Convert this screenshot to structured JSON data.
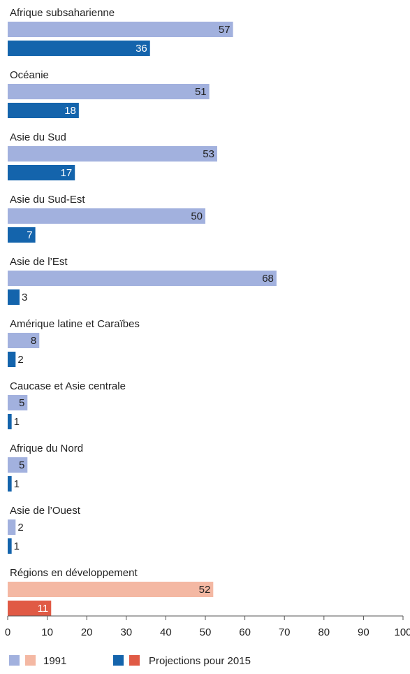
{
  "chart_data": {
    "type": "bar",
    "orientation": "horizontal",
    "categories": [
      "Afrique subsaharienne",
      "Océanie",
      "Asie du Sud",
      "Asie du Sud-Est",
      "Asie de l’Est",
      "Amérique latine et Caraïbes",
      "Caucase et Asie centrale",
      "Afrique du Nord",
      "Asie de l’Ouest",
      "Régions en développement"
    ],
    "series": [
      {
        "name": "1991",
        "values": [
          57,
          51,
          53,
          50,
          68,
          8,
          5,
          5,
          2,
          52
        ],
        "values_shown": [
          "57",
          "51",
          "53",
          "50",
          "68",
          "8",
          "5",
          "5",
          "2",
          "52"
        ]
      },
      {
        "name": "Projections pour 2015",
        "values": [
          36,
          18,
          17,
          7,
          3,
          2,
          1,
          1,
          1,
          11
        ],
        "values_shown": [
          "36",
          "18",
          "17",
          "7",
          "3",
          "2",
          "1",
          "1",
          "1",
          "11"
        ]
      }
    ],
    "highlight_category_index": 9,
    "xlim": [
      0,
      100
    ],
    "xticks": [
      "0",
      "10",
      "20",
      "30",
      "40",
      "50",
      "60",
      "70",
      "80",
      "90",
      "100"
    ],
    "grid": false,
    "legend_position": "bottom-left",
    "colors": {
      "series_1991": "#a2b1de",
      "series_2015": "#1464ac",
      "highlight_1991": "#f4b8a3",
      "highlight_2015": "#e05a45",
      "axis": "#555555"
    }
  },
  "legend": {
    "items": [
      {
        "label": "1991"
      },
      {
        "label": "Projections pour 2015"
      }
    ]
  }
}
